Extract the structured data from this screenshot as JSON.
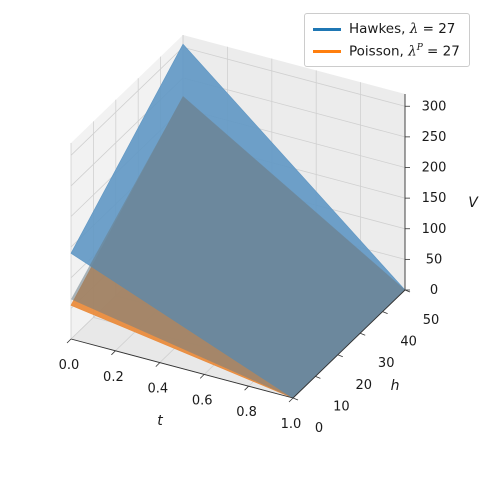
{
  "chart_data": {
    "type": "surface3d",
    "x_axis": {
      "label": "t",
      "range": [
        0.0,
        1.0
      ],
      "ticks": [
        "0.0",
        "0.2",
        "0.4",
        "0.6",
        "0.8",
        "1.0"
      ]
    },
    "y_axis": {
      "label": "h",
      "range": [
        0,
        50
      ],
      "ticks": [
        "0",
        "10",
        "20",
        "30",
        "40",
        "50"
      ]
    },
    "z_axis": {
      "label": "V",
      "range": [
        0,
        320
      ],
      "ticks": [
        "0",
        "50",
        "100",
        "150",
        "200",
        "250",
        "300"
      ]
    },
    "grid": true,
    "legend_position": "top-right",
    "series": [
      {
        "name_prefix": "Hawkes, ",
        "name_var": "λ",
        "name_sup": "",
        "name_suffix": " = 27",
        "color": "#1f77b4",
        "surface_color": "#5f97c4",
        "corners": {
          "t0_h0": 140,
          "t0_h50": 305,
          "t1_h0": 0,
          "t1_h50": 0
        }
      },
      {
        "name_prefix": "Poisson, ",
        "name_var": "λ",
        "name_sup": "P",
        "name_suffix": " = 27",
        "color": "#ff7f0e",
        "surface_color": "#ea8c3d",
        "corners": {
          "t0_h0": 55,
          "t0_h50": 220,
          "t1_h0": 0,
          "t1_h50": 0
        }
      }
    ]
  }
}
